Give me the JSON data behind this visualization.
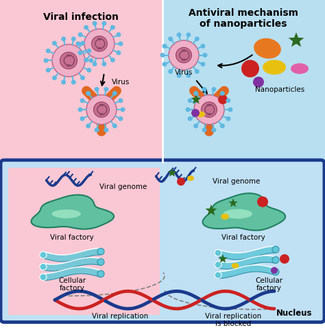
{
  "bg_pink": "#f9c8d4",
  "bg_blue_top": "#b8dff0",
  "bg_blue_bottom": "#c0e0f4",
  "bg_pink_bottom": "#f9c8d4",
  "border_color": "#1a3a8c",
  "title_left": "Viral infection",
  "title_right": "Antiviral mechanism\nof nanoparticles",
  "label_virus_left": "Virus",
  "label_virus_right": "Virus",
  "label_nanoparticles": "Nanoparticles",
  "label_viral_genome_left": "Viral genome",
  "label_viral_genome_right": "Viral genome",
  "label_viral_factory_left": "Viral factory",
  "label_viral_factory_right": "Viral factory",
  "label_cellular_left": "Cellular\nfactory",
  "label_cellular_right": "Cellular\nfactory",
  "label_replication": "Viral replication",
  "label_replication_blocked": "Viral replication\nis blocked",
  "label_nucleus": "Nucleus",
  "virus_body": "#f0b0c8",
  "virus_inner": "#c87090",
  "virus_spike": "#60b8e0",
  "receptor_color": "#e06820",
  "dna_red": "#cc2222",
  "dna_blue": "#1a3a8c",
  "factory_green_outer": "#208060",
  "factory_green_fill": "#60c0a0",
  "factory_green_inner": "#a0e8c8",
  "cellular_color": "#60c8d8",
  "star_color": "#2a6a20",
  "nano_orange": "#e87820",
  "nano_red": "#cc2222",
  "nano_yellow": "#e8c010",
  "nano_pink": "#e060a8",
  "nano_purple": "#8030a0",
  "font_size_title": 10,
  "font_size_label": 7.5
}
